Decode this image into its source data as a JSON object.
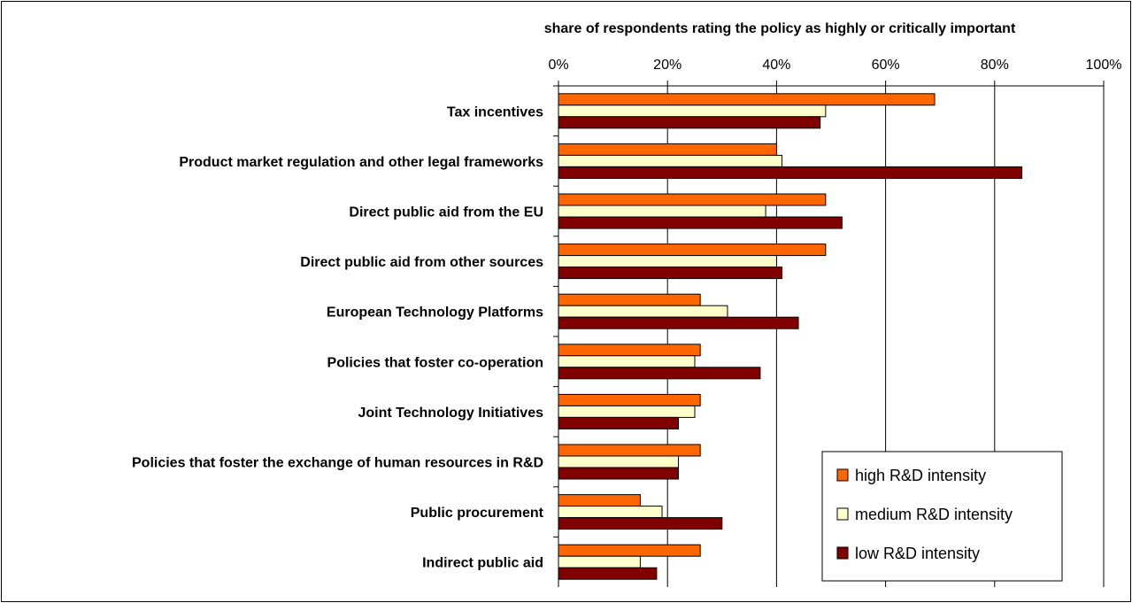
{
  "chart_data": {
    "type": "bar",
    "orientation": "horizontal",
    "title": "share of respondents rating the policy as highly or critically important",
    "xlim": [
      0,
      100
    ],
    "x_ticks": [
      "0%",
      "20%",
      "40%",
      "60%",
      "80%",
      "100%"
    ],
    "grid": true,
    "legend_position": "bottom-right",
    "categories": [
      "Tax incentives",
      "Product market regulation and other legal frameworks",
      "Direct public aid from the EU",
      "Direct public aid from other sources",
      "European Technology Platforms",
      "Policies that foster co-operation",
      "Joint Technology Initiatives",
      "Policies that foster the exchange of human resources in R&D",
      "Public procurement",
      "Indirect public aid"
    ],
    "series": [
      {
        "name": "high R&D intensity",
        "color": "#FF6600",
        "values": [
          69,
          40,
          49,
          49,
          26,
          26,
          26,
          26,
          15,
          26
        ]
      },
      {
        "name": "medium R&D intensity",
        "color": "#FFFFCC",
        "values": [
          49,
          41,
          38,
          40,
          31,
          25,
          25,
          22,
          19,
          15
        ]
      },
      {
        "name": "low R&D intensity",
        "color": "#800000",
        "values": [
          48,
          85,
          52,
          41,
          44,
          37,
          22,
          22,
          30,
          18
        ]
      }
    ]
  }
}
